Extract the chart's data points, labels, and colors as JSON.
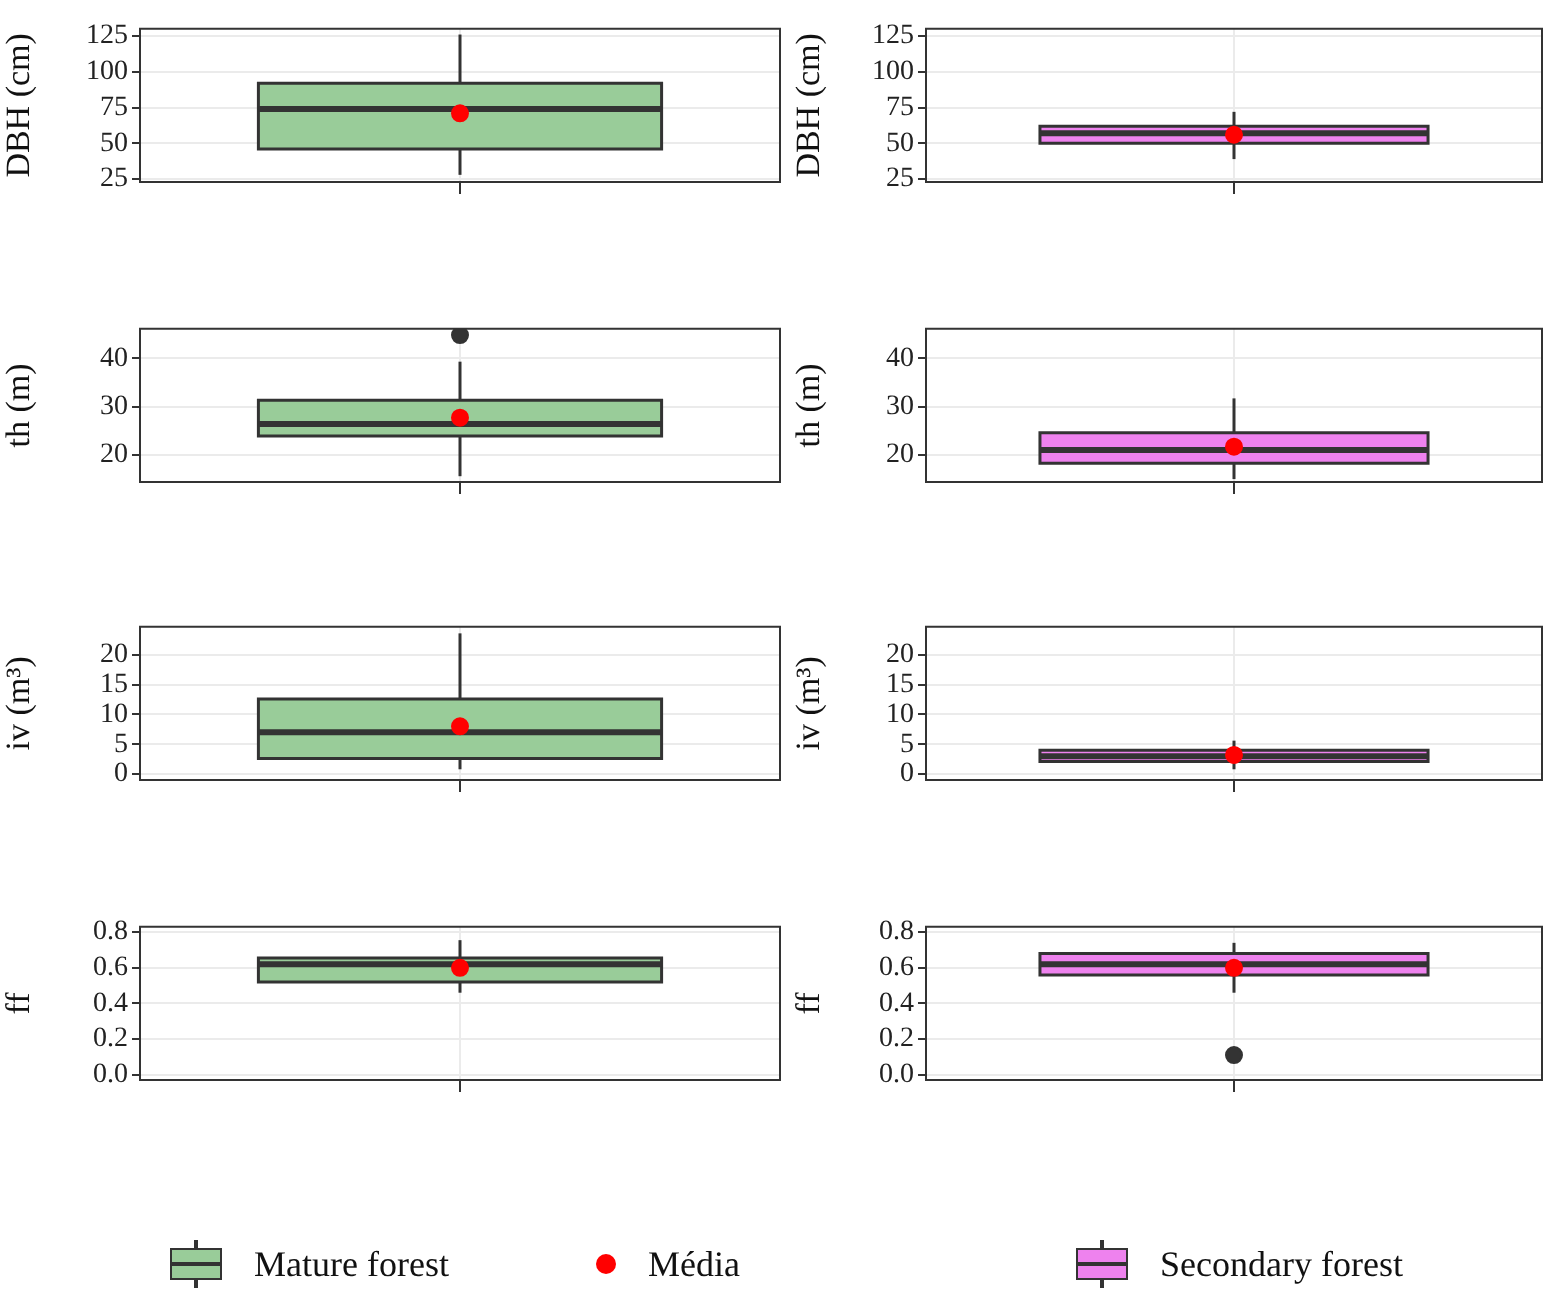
{
  "chart_data": [
    {
      "type": "box",
      "ylabel": "DBH (cm)",
      "categories": [
        null
      ],
      "ylim": [
        23,
        130
      ],
      "yticks": [
        25,
        50,
        75,
        100,
        125
      ],
      "grid": true,
      "tick_labels": "y",
      "legend": "bottom",
      "series": [
        {
          "name": "Mature forest",
          "color": "#99cc99",
          "boxes": [
            {
              "low": 28,
              "q1": 46,
              "median": 74,
              "q3": 92,
              "high": 126
            }
          ]
        },
        {
          "type": "scatter",
          "name": "Média",
          "color": "#ff0000",
          "values": [
            71
          ]
        }
      ]
    },
    {
      "type": "box",
      "ylabel": "DBH (cm)",
      "categories": [
        null
      ],
      "ylim": [
        23,
        130
      ],
      "yticks": [
        25,
        50,
        75,
        100,
        125
      ],
      "grid": true,
      "tick_labels": "y",
      "legend": "bottom",
      "series": [
        {
          "name": "Secondary forest",
          "color": "#ee82ee",
          "boxes": [
            {
              "low": 39,
              "q1": 50,
              "median": 57,
              "q3": 62,
              "high": 72
            }
          ]
        },
        {
          "type": "scatter",
          "name": "Média",
          "color": "#ff0000",
          "values": [
            56
          ]
        }
      ]
    },
    {
      "type": "box",
      "ylabel": "th (m)",
      "categories": [
        null
      ],
      "ylim": [
        14.4,
        46.1
      ],
      "yticks": [
        20,
        30,
        40
      ],
      "grid": true,
      "tick_labels": "y",
      "legend": "bottom",
      "series": [
        {
          "name": "Mature forest",
          "color": "#99cc99",
          "boxes": [
            {
              "low": 15.6,
              "q1": 23.9,
              "median": 26.4,
              "q3": 31.3,
              "high": 39.3,
              "outliers": [
                44.8
              ]
            }
          ]
        },
        {
          "type": "scatter",
          "name": "Média",
          "color": "#ff0000",
          "values": [
            27.7
          ]
        }
      ]
    },
    {
      "type": "box",
      "ylabel": "th (m)",
      "categories": [
        null
      ],
      "ylim": [
        14.4,
        46.1
      ],
      "yticks": [
        20,
        30,
        40
      ],
      "grid": true,
      "tick_labels": "y",
      "legend": "bottom",
      "series": [
        {
          "name": "Secondary forest",
          "color": "#ee82ee",
          "boxes": [
            {
              "low": 15,
              "q1": 18.3,
              "median": 21,
              "q3": 24.6,
              "high": 31.7
            }
          ]
        },
        {
          "type": "scatter",
          "name": "Média",
          "color": "#ff0000",
          "values": [
            21.7
          ]
        }
      ]
    },
    {
      "type": "box",
      "ylabel": "iv (m³)",
      "categories": [
        null
      ],
      "ylim": [
        -1,
        24.7
      ],
      "yticks": [
        0,
        5,
        10,
        15,
        20
      ],
      "grid": true,
      "tick_labels": "y",
      "legend": "bottom",
      "series": [
        {
          "name": "Mature forest",
          "color": "#99cc99",
          "boxes": [
            {
              "low": 0.8,
              "q1": 2.6,
              "median": 7,
              "q3": 12.6,
              "high": 23.6
            }
          ]
        },
        {
          "type": "scatter",
          "name": "Média",
          "color": "#ff0000",
          "values": [
            8
          ]
        }
      ]
    },
    {
      "type": "box",
      "ylabel": "iv (m³)",
      "categories": [
        null
      ],
      "ylim": [
        -1,
        24.7
      ],
      "yticks": [
        0,
        5,
        10,
        15,
        20
      ],
      "grid": true,
      "tick_labels": "y",
      "legend": "bottom",
      "series": [
        {
          "name": "Secondary forest",
          "color": "#ee82ee",
          "boxes": [
            {
              "low": 0.8,
              "q1": 2.1,
              "median": 3,
              "q3": 4,
              "high": 5.6
            }
          ]
        },
        {
          "type": "scatter",
          "name": "Média",
          "color": "#ff0000",
          "values": [
            3.2
          ]
        }
      ]
    },
    {
      "type": "box",
      "ylabel": "ff",
      "categories": [
        null
      ],
      "ylim": [
        -0.03,
        0.83
      ],
      "yticks": [
        {
          "value": 0,
          "label": "0.0"
        },
        0.2,
        0.4,
        0.6,
        0.8
      ],
      "grid": true,
      "tick_labels": "y",
      "legend": "bottom",
      "series": [
        {
          "name": "Mature forest",
          "color": "#99cc99",
          "boxes": [
            {
              "low": 0.46,
              "q1": 0.52,
              "median": 0.62,
              "q3": 0.655,
              "high": 0.755
            }
          ]
        },
        {
          "type": "scatter",
          "name": "Média",
          "color": "#ff0000",
          "values": [
            0.6
          ]
        }
      ]
    },
    {
      "type": "box",
      "ylabel": "ff",
      "categories": [
        null
      ],
      "ylim": [
        -0.03,
        0.83
      ],
      "yticks": [
        {
          "value": 0,
          "label": "0.0"
        },
        0.2,
        0.4,
        0.6,
        0.8
      ],
      "grid": true,
      "tick_labels": "y",
      "legend": "bottom",
      "series": [
        {
          "name": "Secondary forest",
          "color": "#ee82ee",
          "boxes": [
            {
              "low": 0.46,
              "q1": 0.56,
              "median": 0.62,
              "q3": 0.68,
              "high": 0.74,
              "outliers": [
                0.11
              ]
            }
          ]
        },
        {
          "type": "scatter",
          "name": "Média",
          "color": "#ff0000",
          "values": [
            0.6
          ]
        }
      ]
    }
  ]
}
